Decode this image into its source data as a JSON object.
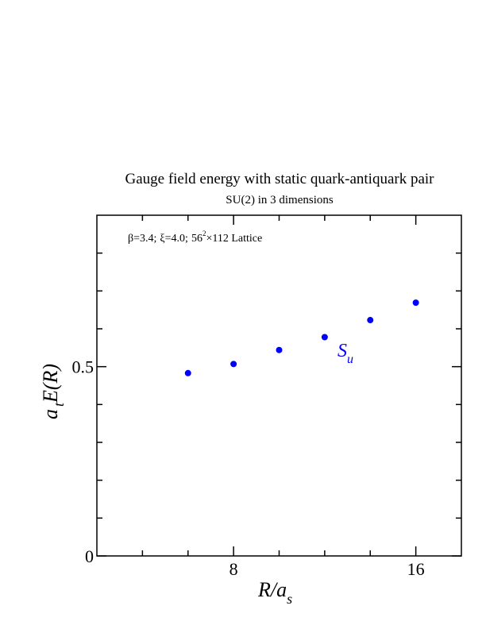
{
  "chart_data": {
    "type": "scatter",
    "title": "Gauge field energy with static quark-antiquark pair",
    "subtitle": "SU(2) in 3 dimensions",
    "annotation": {
      "beta": "β=3.4;",
      "xi": "ξ=4.0;",
      "lattice_base": "56",
      "lattice_exp": "2",
      "lattice_rest": "×112 Lattice"
    },
    "xlabel": {
      "main": "R/a",
      "sub": "s"
    },
    "ylabel": {
      "main_a": "a",
      "sub": "t",
      "main_rest": "E(R)"
    },
    "xlim": [
      2,
      18
    ],
    "ylim": [
      0,
      0.9
    ],
    "x_major_ticks": [
      8,
      16
    ],
    "x_tick_labels": [
      "8",
      "16"
    ],
    "x_minor_ticks": [
      4,
      6,
      10,
      12,
      14
    ],
    "y_major_ticks": [
      0,
      0.5
    ],
    "y_tick_labels": [
      "0",
      "0.5"
    ],
    "y_minor_ticks": [
      0.1,
      0.2,
      0.3,
      0.4,
      0.6,
      0.7,
      0.8
    ],
    "grid": false,
    "series": [
      {
        "name": "S_u",
        "label_main": "S",
        "label_sub": "u",
        "color": "#0000ff",
        "x": [
          6,
          8,
          10,
          12,
          14,
          16
        ],
        "y": [
          0.483,
          0.507,
          0.544,
          0.578,
          0.623,
          0.669
        ]
      }
    ]
  }
}
